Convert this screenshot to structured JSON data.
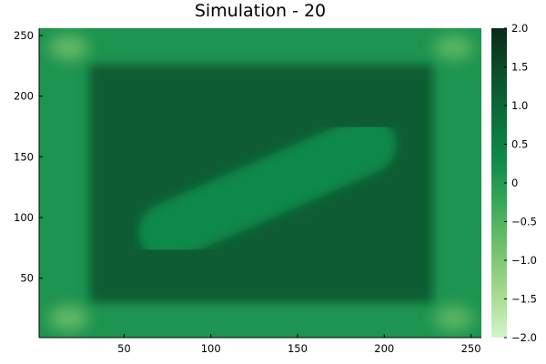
{
  "chart_data": {
    "type": "heatmap",
    "title": "Simulation - 20",
    "xlabel": "",
    "ylabel": "",
    "xlim": [
      1,
      256
    ],
    "ylim": [
      1,
      256
    ],
    "x_ticks": [
      50,
      100,
      150,
      200,
      250
    ],
    "y_ticks": [
      50,
      100,
      150,
      200,
      250
    ],
    "colorbar": {
      "min": -2.0,
      "max": 2.0,
      "ticks": [
        2.0,
        1.5,
        1.0,
        0.5,
        0,
        -0.5,
        -1.0,
        -1.5,
        -2.0
      ],
      "tick_labels": [
        "2.0",
        "1.5",
        "1.0",
        "0.5",
        "0",
        "−0.5",
        "−1.0",
        "−1.5",
        "−2.0"
      ],
      "colormap": [
        "#d2f5cd",
        "#a6d98d",
        "#73c26c",
        "#3ba95a",
        "#0e8a4a",
        "#0b6e3b",
        "#0a4f2b",
        "#0b2a17"
      ]
    },
    "field": {
      "background_value": 0.1,
      "inner_region": {
        "x_range": [
          30,
          228
        ],
        "y_range": [
          30,
          226
        ],
        "value": 1.2
      },
      "bar": {
        "from": [
          75,
          88
        ],
        "to": [
          190,
          160
        ],
        "value": 0.3
      },
      "corner_spots": [
        {
          "x": 18,
          "y": 240,
          "value": -0.8
        },
        {
          "x": 240,
          "y": 240,
          "value": -0.7
        },
        {
          "x": 18,
          "y": 17,
          "value": -0.8
        },
        {
          "x": 240,
          "y": 17,
          "value": -0.7
        }
      ]
    }
  }
}
